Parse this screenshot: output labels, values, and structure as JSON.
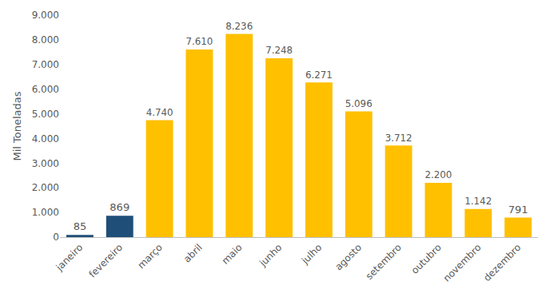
{
  "chart_data": {
    "type": "bar",
    "y_label": "Mil Toneladas",
    "categories": [
      "janeiro",
      "fevereiro",
      "março",
      "abril",
      "maio",
      "junho",
      "julho",
      "agosto",
      "setembro",
      "outubro",
      "novembro",
      "dezembro"
    ],
    "values": [
      85,
      869,
      4740,
      7610,
      8236,
      7248,
      6271,
      5096,
      3712,
      2200,
      1142,
      791
    ],
    "value_labels": [
      "85",
      "869",
      "4.740",
      "7.610",
      "8.236",
      "7.248",
      "6.271",
      "5.096",
      "3.712",
      "2.200",
      "1.142",
      "791"
    ],
    "colors": [
      "#1f4e79",
      "#1f4e79",
      "#ffc000",
      "#ffc000",
      "#ffc000",
      "#ffc000",
      "#ffc000",
      "#ffc000",
      "#ffc000",
      "#ffc000",
      "#ffc000",
      "#ffc000"
    ],
    "ylim": [
      0,
      9000
    ],
    "yticks": [
      0,
      {
        "value": 1000,
        "label": "1.000"
      },
      {
        "value": 2000,
        "label": "2.000"
      },
      {
        "value": 3000,
        "label": "3.000"
      },
      {
        "value": 4000,
        "label": "4.000"
      },
      {
        "value": 5000,
        "label": "5.000"
      },
      {
        "value": 6000,
        "label": "6.000"
      },
      {
        "value": 7000,
        "label": "7.000"
      },
      {
        "value": 8000,
        "label": "8.000"
      },
      {
        "value": 9000,
        "label": "9.000"
      }
    ],
    "grid": false,
    "data_labels": true
  }
}
